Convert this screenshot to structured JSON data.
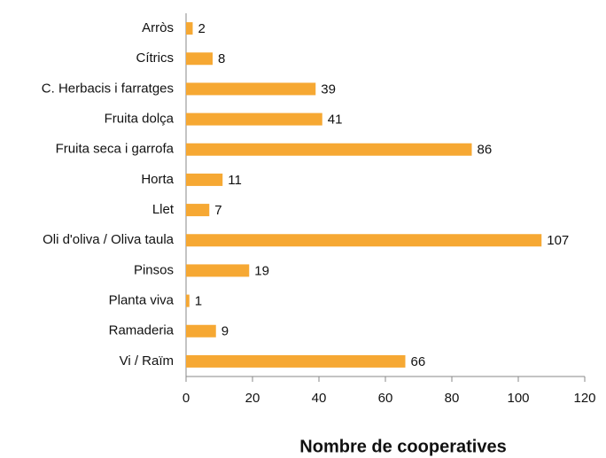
{
  "chart_data": {
    "type": "barh",
    "x_label": "Nombre de cooperatives",
    "categories": [
      "Arròs",
      "Cítrics",
      "C. Herbacis i farratges",
      "Fruita dolça",
      "Fruita seca i garrofa",
      "Horta",
      "Llet",
      "Oli d'oliva / Oliva taula",
      "Pinsos",
      "Planta viva",
      "Ramaderia",
      "Vi / Raïm"
    ],
    "values": [
      2,
      8,
      39,
      41,
      86,
      11,
      7,
      107,
      19,
      1,
      9,
      66
    ],
    "color": "#f6a833",
    "xlim": [
      0,
      120
    ],
    "xticks": [
      0,
      20,
      40,
      60,
      80,
      100,
      120
    ],
    "grid": false
  }
}
